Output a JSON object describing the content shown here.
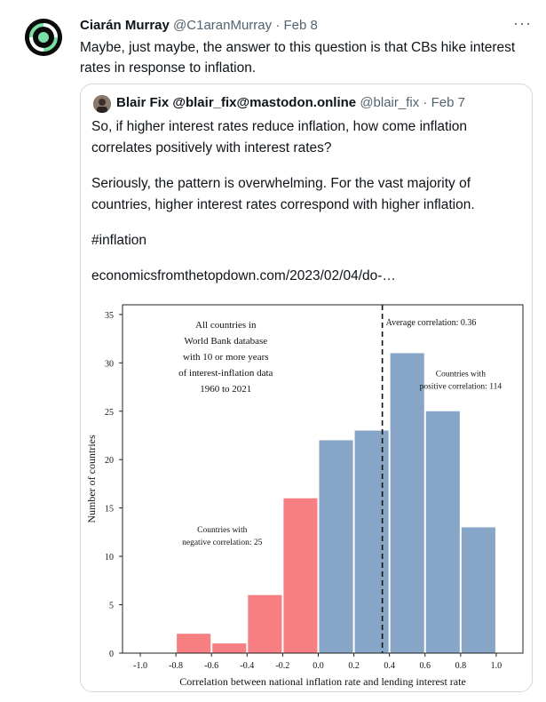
{
  "tweet": {
    "author_name": "Ciarán Murray",
    "author_handle": "@C1aranMurray",
    "date": "· Feb 8",
    "more_label": "···",
    "text": "Maybe, just maybe, the answer to this question is that CBs hike interest rates in response to inflation."
  },
  "quote": {
    "author_name": "Blair Fix @blair_fix@mastodon.online",
    "author_handle": "@blair_fix",
    "date": "· Feb 7",
    "paragraphs": [
      "So, if higher interest rates reduce inflation, how come inflation correlates positively with interest rates?",
      "Seriously, the pattern is overwhelming. For the vast majority of countries, higher interest rates correspond with higher inflation.",
      "#inflation",
      "economicsfromthetopdown.com/2023/02/04/do-…"
    ]
  },
  "colors": {
    "negative_bar": "#f77f81",
    "positive_bar": "#87a5c7",
    "text": "#0f1419",
    "muted": "#536471",
    "border": "#cfd9de"
  },
  "chart_data": {
    "type": "bar",
    "xlabel": "Correlation between national inflation rate and lending interest rate",
    "ylabel": "Number of countries",
    "xlim": [
      -1.1,
      1.15
    ],
    "ylim": [
      0,
      36
    ],
    "xticks": [
      -1.0,
      -0.8,
      -0.6,
      -0.4,
      -0.2,
      0.0,
      0.2,
      0.4,
      0.6,
      0.8,
      1.0
    ],
    "xtick_labels": [
      "-1.0",
      "-0.8",
      "-0.6",
      "-0.4",
      "-0.2",
      "0.0",
      "0.2",
      "0.4",
      "0.6",
      "0.8",
      "1.0"
    ],
    "yticks": [
      0,
      5,
      10,
      15,
      20,
      25,
      30,
      35
    ],
    "bins": [
      {
        "start": -0.8,
        "end": -0.6,
        "value": 2,
        "group": "negative"
      },
      {
        "start": -0.6,
        "end": -0.4,
        "value": 1,
        "group": "negative"
      },
      {
        "start": -0.4,
        "end": -0.2,
        "value": 6,
        "group": "negative"
      },
      {
        "start": -0.2,
        "end": 0.0,
        "value": 16,
        "group": "negative"
      },
      {
        "start": 0.0,
        "end": 0.2,
        "value": 22,
        "group": "positive"
      },
      {
        "start": 0.2,
        "end": 0.4,
        "value": 23,
        "group": "positive"
      },
      {
        "start": 0.4,
        "end": 0.6,
        "value": 31,
        "group": "positive"
      },
      {
        "start": 0.6,
        "end": 0.8,
        "value": 25,
        "group": "positive"
      },
      {
        "start": 0.8,
        "end": 1.0,
        "value": 13,
        "group": "positive"
      }
    ],
    "average_correlation": 0.36,
    "average_label": "Average correlation: 0.36",
    "info_lines": [
      "All countries in",
      "World Bank database",
      "with 10 or more years",
      "of interest-inflation data",
      "1960 to 2021"
    ],
    "positive_note": [
      "Countries with",
      "positive correlation: 114"
    ],
    "negative_note": [
      "Countries with",
      "negative correlation: 25"
    ]
  }
}
